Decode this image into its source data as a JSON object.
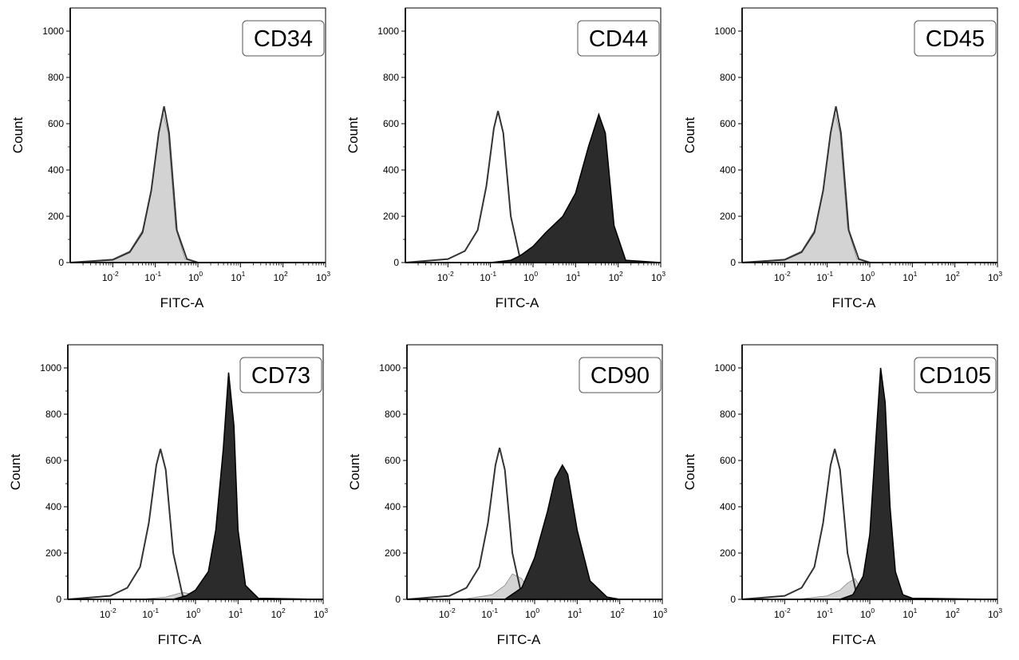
{
  "chart_data": [
    {
      "type": "area",
      "panel_label": "CD34",
      "xlabel": "FITC-A",
      "ylabel": "Count",
      "xscale": "log",
      "xlim": [
        0.001,
        1000
      ],
      "ylim": [
        0,
        1100
      ],
      "x_ticks": [
        {
          "base": "10",
          "exp": "-2"
        },
        {
          "base": "10",
          "exp": "-1"
        },
        {
          "base": "10",
          "exp": "0"
        },
        {
          "base": "10",
          "exp": "1"
        },
        {
          "base": "10",
          "exp": "2"
        },
        {
          "base": "10",
          "exp": "3"
        }
      ],
      "y_ticks": [
        "0",
        "200",
        "400",
        "600",
        "800",
        "1000"
      ],
      "grid": false,
      "series": [
        {
          "fill": "#d3d3d3",
          "x": [
            0.001,
            0.01,
            0.025,
            0.05,
            0.08,
            0.12,
            0.15,
            0.2,
            0.3,
            0.5,
            1,
            10,
            1000
          ],
          "y": [
            0,
            15,
            50,
            140,
            320,
            560,
            650,
            560,
            150,
            15,
            0,
            0,
            0
          ]
        },
        {
          "outline": "#333333",
          "x": [
            0.001,
            0.01,
            0.025,
            0.05,
            0.08,
            0.12,
            0.16,
            0.21,
            0.32,
            0.55,
            1,
            10,
            1000
          ],
          "y": [
            0,
            12,
            45,
            130,
            310,
            560,
            675,
            560,
            140,
            15,
            0,
            0,
            0
          ]
        }
      ]
    },
    {
      "type": "area",
      "panel_label": "CD44",
      "xlabel": "FITC-A",
      "ylabel": "Count",
      "xscale": "log",
      "xlim": [
        0.001,
        1000
      ],
      "ylim": [
        0,
        1100
      ],
      "x_ticks": [
        {
          "base": "10",
          "exp": "-2"
        },
        {
          "base": "10",
          "exp": "-1"
        },
        {
          "base": "10",
          "exp": "0"
        },
        {
          "base": "10",
          "exp": "1"
        },
        {
          "base": "10",
          "exp": "2"
        },
        {
          "base": "10",
          "exp": "3"
        }
      ],
      "y_ticks": [
        "0",
        "200",
        "400",
        "600",
        "800",
        "1000"
      ],
      "grid": false,
      "series": [
        {
          "outline": "#333333",
          "x": [
            0.001,
            0.01,
            0.025,
            0.05,
            0.08,
            0.12,
            0.15,
            0.2,
            0.3,
            0.5,
            1,
            10,
            1000
          ],
          "y": [
            0,
            15,
            50,
            140,
            330,
            580,
            655,
            560,
            200,
            15,
            0,
            0,
            0
          ]
        },
        {
          "fill": "#2b2b2b",
          "x": [
            0.001,
            0.1,
            0.3,
            0.5,
            1,
            2,
            5,
            10,
            20,
            35,
            50,
            80,
            150,
            1000
          ],
          "y": [
            0,
            0,
            10,
            30,
            70,
            130,
            200,
            300,
            500,
            640,
            560,
            160,
            10,
            0
          ]
        }
      ]
    },
    {
      "type": "area",
      "panel_label": "CD45",
      "xlabel": "FITC-A",
      "ylabel": "Count",
      "xscale": "log",
      "xlim": [
        0.001,
        1000
      ],
      "ylim": [
        0,
        1100
      ],
      "x_ticks": [
        {
          "base": "10",
          "exp": "-2"
        },
        {
          "base": "10",
          "exp": "-1"
        },
        {
          "base": "10",
          "exp": "0"
        },
        {
          "base": "10",
          "exp": "1"
        },
        {
          "base": "10",
          "exp": "2"
        },
        {
          "base": "10",
          "exp": "3"
        }
      ],
      "y_ticks": [
        "0",
        "200",
        "400",
        "600",
        "800",
        "1000"
      ],
      "grid": false,
      "series": [
        {
          "fill": "#d3d3d3",
          "x": [
            0.001,
            0.01,
            0.025,
            0.05,
            0.08,
            0.12,
            0.15,
            0.2,
            0.3,
            0.5,
            1,
            10,
            1000
          ],
          "y": [
            0,
            15,
            50,
            140,
            320,
            560,
            650,
            560,
            150,
            15,
            0,
            0,
            0
          ]
        },
        {
          "outline": "#333333",
          "x": [
            0.001,
            0.01,
            0.025,
            0.05,
            0.08,
            0.12,
            0.16,
            0.21,
            0.32,
            0.55,
            1,
            10,
            1000
          ],
          "y": [
            0,
            12,
            45,
            130,
            310,
            560,
            675,
            560,
            140,
            15,
            0,
            0,
            0
          ]
        }
      ]
    },
    {
      "type": "area",
      "panel_label": "CD73",
      "xlabel": "FITC-A",
      "ylabel": "Count",
      "xscale": "log",
      "xlim": [
        0.001,
        1000
      ],
      "ylim": [
        0,
        1100
      ],
      "x_ticks": [
        {
          "base": "10",
          "exp": "-2"
        },
        {
          "base": "10",
          "exp": "-1"
        },
        {
          "base": "10",
          "exp": "0"
        },
        {
          "base": "10",
          "exp": "1"
        },
        {
          "base": "10",
          "exp": "2"
        },
        {
          "base": "10",
          "exp": "3"
        }
      ],
      "y_ticks": [
        "0",
        "200",
        "400",
        "600",
        "800",
        "1000"
      ],
      "grid": false,
      "series": [
        {
          "fill": "#d3d3d3",
          "x": [
            0.001,
            0.05,
            0.2,
            0.5,
            1,
            2,
            10,
            1000
          ],
          "y": [
            0,
            0,
            10,
            30,
            20,
            5,
            0,
            0
          ]
        },
        {
          "outline": "#333333",
          "x": [
            0.001,
            0.01,
            0.025,
            0.05,
            0.08,
            0.12,
            0.15,
            0.2,
            0.3,
            0.5,
            1,
            10,
            1000
          ],
          "y": [
            0,
            15,
            50,
            140,
            330,
            580,
            650,
            560,
            200,
            15,
            0,
            0,
            0
          ]
        },
        {
          "fill": "#2b2b2b",
          "x": [
            0.001,
            0.3,
            0.6,
            1,
            2,
            3,
            4.5,
            6,
            8,
            10,
            15,
            30,
            1000
          ],
          "y": [
            0,
            0,
            15,
            40,
            120,
            300,
            650,
            980,
            750,
            300,
            60,
            5,
            0
          ]
        }
      ]
    },
    {
      "type": "area",
      "panel_label": "CD90",
      "xlabel": "FITC-A",
      "ylabel": "Count",
      "xscale": "log",
      "xlim": [
        0.001,
        1000
      ],
      "ylim": [
        0,
        1100
      ],
      "x_ticks": [
        {
          "base": "10",
          "exp": "-2"
        },
        {
          "base": "10",
          "exp": "-1"
        },
        {
          "base": "10",
          "exp": "0"
        },
        {
          "base": "10",
          "exp": "1"
        },
        {
          "base": "10",
          "exp": "2"
        },
        {
          "base": "10",
          "exp": "3"
        }
      ],
      "y_ticks": [
        "0",
        "200",
        "400",
        "600",
        "800",
        "1000"
      ],
      "grid": false,
      "series": [
        {
          "fill": "#d3d3d3",
          "x": [
            0.001,
            0.02,
            0.1,
            0.2,
            0.3,
            0.5,
            0.8,
            1.5,
            3,
            1000
          ],
          "y": [
            0,
            0,
            20,
            60,
            110,
            90,
            30,
            5,
            0,
            0
          ]
        },
        {
          "outline": "#333333",
          "x": [
            0.001,
            0.01,
            0.025,
            0.05,
            0.08,
            0.12,
            0.15,
            0.2,
            0.3,
            0.5,
            1,
            10,
            1000
          ],
          "y": [
            0,
            15,
            50,
            140,
            330,
            580,
            655,
            560,
            200,
            15,
            0,
            0,
            0
          ]
        },
        {
          "fill": "#2b2b2b",
          "x": [
            0.001,
            0.2,
            0.5,
            1,
            2,
            3,
            4.5,
            6,
            10,
            20,
            50,
            100,
            1000
          ],
          "y": [
            0,
            0,
            50,
            180,
            380,
            520,
            580,
            540,
            300,
            80,
            10,
            0,
            0
          ]
        }
      ]
    },
    {
      "type": "area",
      "panel_label": "CD105",
      "xlabel": "FITC-A",
      "ylabel": "Count",
      "xscale": "log",
      "xlim": [
        0.001,
        1000
      ],
      "ylim": [
        0,
        1100
      ],
      "x_ticks": [
        {
          "base": "10",
          "exp": "-2"
        },
        {
          "base": "10",
          "exp": "-1"
        },
        {
          "base": "10",
          "exp": "0"
        },
        {
          "base": "10",
          "exp": "1"
        },
        {
          "base": "10",
          "exp": "2"
        },
        {
          "base": "10",
          "exp": "3"
        }
      ],
      "y_ticks": [
        "0",
        "200",
        "400",
        "600",
        "800",
        "1000"
      ],
      "grid": false,
      "series": [
        {
          "fill": "#d3d3d3",
          "x": [
            0.001,
            0.02,
            0.1,
            0.2,
            0.3,
            0.45,
            0.6,
            1,
            2,
            1000
          ],
          "y": [
            0,
            0,
            15,
            40,
            70,
            90,
            50,
            10,
            0,
            0
          ]
        },
        {
          "outline": "#333333",
          "x": [
            0.001,
            0.01,
            0.025,
            0.05,
            0.08,
            0.12,
            0.15,
            0.2,
            0.3,
            0.5,
            1,
            10,
            1000
          ],
          "y": [
            0,
            15,
            50,
            140,
            330,
            580,
            650,
            560,
            200,
            15,
            0,
            0,
            0
          ]
        },
        {
          "fill": "#2b2b2b",
          "x": [
            0.001,
            0.2,
            0.4,
            0.7,
            1,
            1.4,
            1.8,
            2.3,
            3,
            4,
            6,
            10,
            1000
          ],
          "y": [
            0,
            0,
            20,
            100,
            280,
            700,
            1000,
            850,
            400,
            120,
            20,
            5,
            0
          ]
        }
      ]
    }
  ]
}
